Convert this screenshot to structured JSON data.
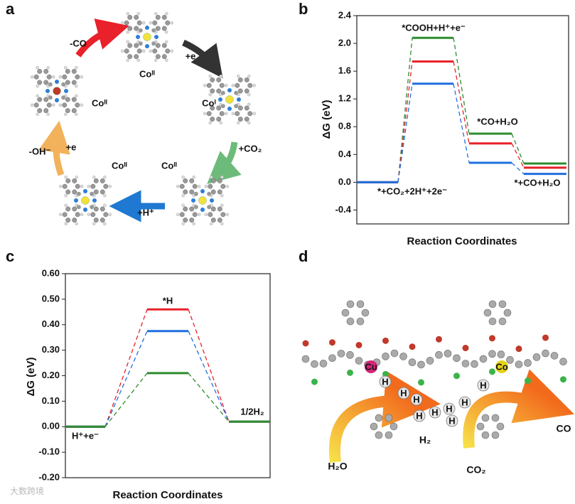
{
  "panel_labels": [
    "a",
    "b",
    "c",
    "d"
  ],
  "cycle": {
    "labels": [
      "-CO",
      "Coᴵᴵ",
      "+e",
      "Coᴵ",
      "+CO₂",
      "Coᴵᴵ",
      "Coᴵᴵ",
      "+H⁺",
      "-OH⁻",
      "+e",
      "Coᴵᴵ"
    ]
  },
  "scheme": {
    "metals": [
      "Cu",
      "Co"
    ],
    "atoms": [
      "H",
      "H",
      "H",
      "H",
      "H",
      "H",
      "H",
      "H",
      "H"
    ],
    "species": [
      "H₂O",
      "H₂",
      "CO₂",
      "CO"
    ]
  },
  "watermark": "大数跨境",
  "chart_data": [
    {
      "type": "energy",
      "xlabel": "Reaction Coordinates",
      "ylabel": "ΔG (eV)",
      "categories": [
        "*+CO₂+2H⁺+2e⁻",
        "*COOH+H⁺+e⁻",
        "*CO+H₂O",
        "*+CO+H₂O"
      ],
      "series": [
        {
          "color": "#2e8b2e",
          "values": [
            0,
            2.08,
            0.7,
            0.27
          ]
        },
        {
          "color": "#e8212a",
          "values": [
            0,
            1.74,
            0.56,
            0.21
          ]
        },
        {
          "color": "#1f6fe0",
          "values": [
            0,
            1.42,
            0.28,
            0.12
          ]
        }
      ],
      "ylim": [
        -0.6,
        2.4
      ],
      "yticks": [
        -0.4,
        {
          "value": 0,
          "label": "0.0"
        },
        0.4,
        0.8,
        1.2,
        1.6,
        {
          "value": 2,
          "label": "2.0"
        },
        2.4
      ]
    },
    {
      "type": "energy",
      "xlabel": "Reaction Coordinates",
      "ylabel": "ΔG (eV)",
      "categories": [
        "H⁺+e⁻",
        "*H",
        "1/2H₂"
      ],
      "series": [
        {
          "color": "#e8212a",
          "values": [
            0,
            0.46,
            0.02
          ]
        },
        {
          "color": "#1f6fe0",
          "values": [
            0,
            0.375,
            0.02
          ]
        },
        {
          "color": "#2e8b2e",
          "values": [
            0,
            0.21,
            0.02
          ]
        }
      ],
      "ylim": [
        -0.2,
        0.6
      ],
      "yticks": [
        {
          "value": -0.2,
          "label": "-0.20"
        },
        {
          "value": -0.1,
          "label": "-0.10"
        },
        {
          "value": 0,
          "label": "0.00"
        },
        {
          "value": 0.1,
          "label": "0.10"
        },
        {
          "value": 0.2,
          "label": "0.20"
        },
        {
          "value": 0.3,
          "label": "0.30"
        },
        {
          "value": 0.4,
          "label": "0.40"
        },
        {
          "value": 0.5,
          "label": "0.50"
        },
        {
          "value": 0.6,
          "label": "0.60"
        }
      ]
    }
  ]
}
